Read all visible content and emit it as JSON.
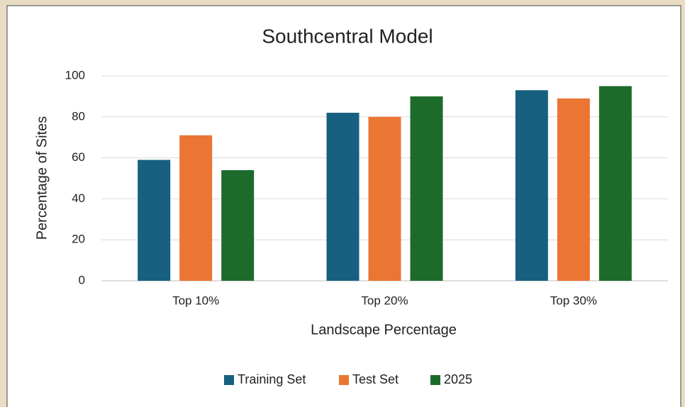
{
  "chart_data": {
    "type": "bar",
    "title": "Southcentral Model",
    "x_label": "Landscape Percentage",
    "y_label": "Percentage of Sites",
    "categories": [
      "Top 10%",
      "Top 20%",
      "Top 30%"
    ],
    "series": [
      {
        "name": "Training Set",
        "color": "#17607f",
        "values": [
          59,
          82,
          93
        ]
      },
      {
        "name": "Test Set",
        "color": "#eb7533",
        "values": [
          71,
          80,
          89
        ]
      },
      {
        "name": "2025",
        "color": "#1d6b2b",
        "values": [
          54,
          90,
          95
        ]
      }
    ],
    "ylim": [
      0,
      100
    ],
    "yticks": [
      0,
      20,
      40,
      60,
      80,
      100
    ],
    "grid": true,
    "legend": "bottom"
  }
}
